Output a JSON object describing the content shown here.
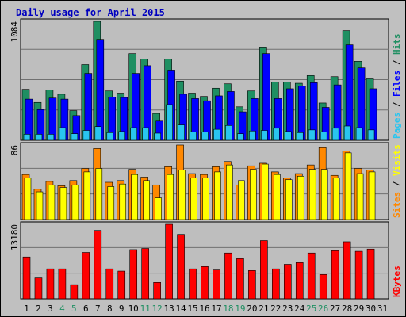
{
  "colors": {
    "page": "#c0c0c0",
    "panel": "#bebebe",
    "title": "#0000c0",
    "grid": "#707070",
    "hits": "#1f8f62",
    "files": "#0000ff",
    "pages": "#29c5ef",
    "sites": "#ff8800",
    "visits": "#ffff00",
    "kbytes": "#ff0000",
    "weekend_label": "#1f8f62",
    "label": "#000000"
  },
  "chart_data": {
    "title": "Daily usage for April 2015",
    "days": [
      "1",
      "2",
      "3",
      "4",
      "5",
      "6",
      "7",
      "8",
      "9",
      "10",
      "11",
      "12",
      "13",
      "14",
      "15",
      "16",
      "17",
      "18",
      "19",
      "20",
      "21",
      "22",
      "23",
      "24",
      "25",
      "26",
      "27",
      "28",
      "29",
      "30",
      "31"
    ],
    "weekend_days": [
      "4",
      "5",
      "11",
      "12",
      "18",
      "19",
      "25",
      "26"
    ],
    "panels": [
      {
        "type": "bar",
        "ymax_label": "1084",
        "ylim": [
          0,
          1084
        ],
        "legend": [
          "Pages",
          "Files",
          "Hits"
        ],
        "legend_sep": " / ",
        "series": [
          {
            "name": "Hits",
            "color_key": "hits",
            "values": [
              465,
              345,
              460,
              420,
              270,
              690,
              1084,
              450,
              430,
              790,
              740,
              245,
              740,
              540,
              430,
              400,
              475,
              515,
              305,
              450,
              850,
              530,
              530,
              520,
              590,
              340,
              580,
              1000,
              720,
              560,
              0
            ]
          },
          {
            "name": "Files",
            "color_key": "files",
            "values": [
              375,
              280,
              385,
              375,
              225,
              610,
              920,
              395,
              390,
              610,
              680,
              175,
              640,
              420,
              380,
              360,
              405,
              445,
              260,
              380,
              790,
              380,
              470,
              495,
              525,
              300,
              505,
              870,
              660,
              470,
              0
            ]
          },
          {
            "name": "Pages",
            "color_key": "pages",
            "values": [
              55,
              55,
              55,
              115,
              60,
              90,
              125,
              70,
              80,
              115,
              115,
              65,
              325,
              140,
              75,
              75,
              100,
              135,
              60,
              85,
              90,
              110,
              80,
              70,
              95,
              75,
              110,
              130,
              115,
              95,
              0
            ]
          }
        ]
      },
      {
        "type": "bar",
        "ymax_label": "86",
        "ylim": [
          0,
          86
        ],
        "legend": [
          "Sites",
          "Visits"
        ],
        "legend_sep": " / ",
        "series": [
          {
            "name": "Sites",
            "color_key": "sites",
            "values": [
              52,
              35,
              44,
              39,
              45,
              59,
              82,
              43,
              45,
              58,
              49,
              40,
              61,
              86,
              53,
              52,
              61,
              67,
              40,
              62,
              65,
              55,
              48,
              53,
              63,
              83,
              51,
              79,
              59,
              57,
              0
            ]
          },
          {
            "name": "Visits",
            "color_key": "visits",
            "values": [
              48,
              32,
              40,
              37,
              40,
              55,
              59,
              38,
              41,
              52,
              45,
              25,
              52,
              57,
              48,
              48,
              55,
              63,
              45,
              58,
              64,
              52,
              46,
              50,
              58,
              58,
              48,
              77,
              53,
              55,
              0
            ]
          }
        ]
      },
      {
        "type": "bar",
        "ymax_label": "13180",
        "ylim": [
          0,
          13180
        ],
        "legend": [
          "KBytes"
        ],
        "legend_sep": " / ",
        "series": [
          {
            "name": "KBytes",
            "color_key": "kbytes",
            "values": [
              7400,
              3700,
              5300,
              5300,
              2500,
              8200,
              12100,
              5300,
              4900,
              8700,
              8900,
              2900,
              13180,
              11400,
              5300,
              5700,
              5100,
              8100,
              7100,
              5000,
              10300,
              5300,
              6100,
              6400,
              8100,
              4300,
              8500,
              10100,
              8400,
              8800,
              0
            ]
          }
        ]
      }
    ]
  }
}
